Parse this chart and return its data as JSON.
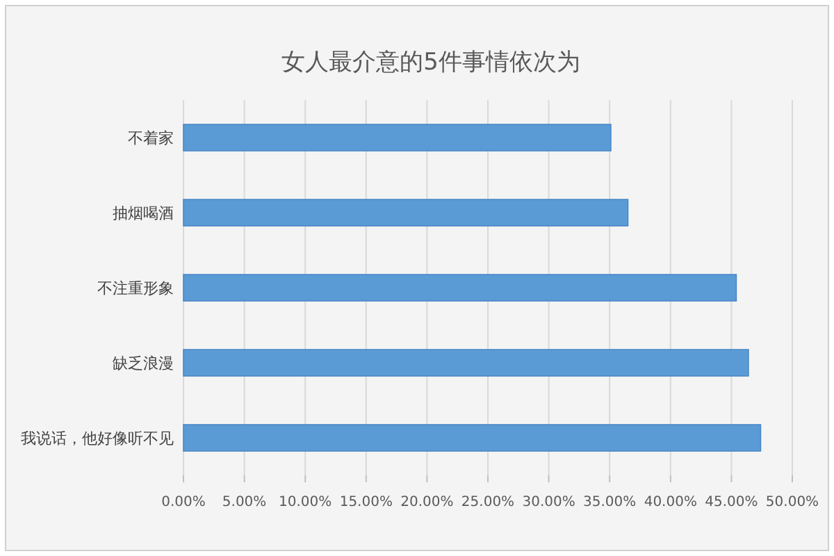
{
  "chart_data": {
    "type": "bar",
    "orientation": "horizontal",
    "title": "女人最介意的5件事情依次为",
    "categories": [
      "不着家",
      "抽烟喝酒",
      "不注重形象",
      "缺乏浪漫",
      "我说话，他好像听不见"
    ],
    "values": [
      0.351,
      0.365,
      0.454,
      0.464,
      0.474
    ],
    "color": "#5b9bd5",
    "xlim": [
      0,
      0.5
    ],
    "xticks": [
      {
        "value": 0,
        "label": "0.00%"
      },
      {
        "value": 0.05,
        "label": "5.00%"
      },
      {
        "value": 0.1,
        "label": "10.00%"
      },
      {
        "value": 0.15,
        "label": "15.00%"
      },
      {
        "value": 0.2,
        "label": "20.00%"
      },
      {
        "value": 0.25,
        "label": "25.00%"
      },
      {
        "value": 0.3,
        "label": "30.00%"
      },
      {
        "value": 0.35,
        "label": "35.00%"
      },
      {
        "value": 0.4,
        "label": "40.00%"
      },
      {
        "value": 0.45,
        "label": "45.00%"
      },
      {
        "value": 0.5,
        "label": "50.00%"
      }
    ],
    "grid": "x"
  }
}
